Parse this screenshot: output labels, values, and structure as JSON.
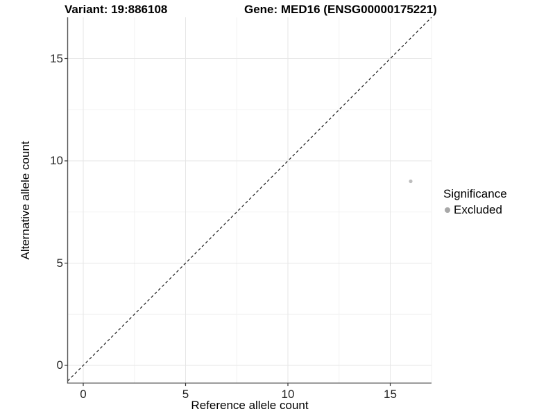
{
  "chart_data": {
    "type": "scatter",
    "titles": {
      "left": "Variant: 19:886108",
      "right": "Gene: MED16 (ENSG00000175221)"
    },
    "xlabel": "Reference allele count",
    "ylabel": "Alternative allele count",
    "xticks": [
      0,
      5,
      10,
      15
    ],
    "yticks": [
      0,
      5,
      10,
      15
    ],
    "xlim": [
      -0.85,
      17.05
    ],
    "ylim": [
      -0.85,
      17.05
    ],
    "grid": true,
    "points": [
      {
        "x": 16,
        "y": 9,
        "series": "Excluded"
      }
    ],
    "reference_line": {
      "type": "abline",
      "slope": 1,
      "intercept": 0,
      "style": "dashed"
    },
    "legend": {
      "title": "Significance",
      "position": "right",
      "items": [
        {
          "label": "Excluded",
          "color": "#a8a8a8"
        }
      ]
    },
    "colors": {
      "point": "#bdbdbd",
      "grid_major": "#e6e6e6",
      "grid_minor": "#f2f2f2",
      "axis_line": "#565656",
      "tick_mark": "#333333",
      "reference_line": "#1a1a1a"
    }
  }
}
